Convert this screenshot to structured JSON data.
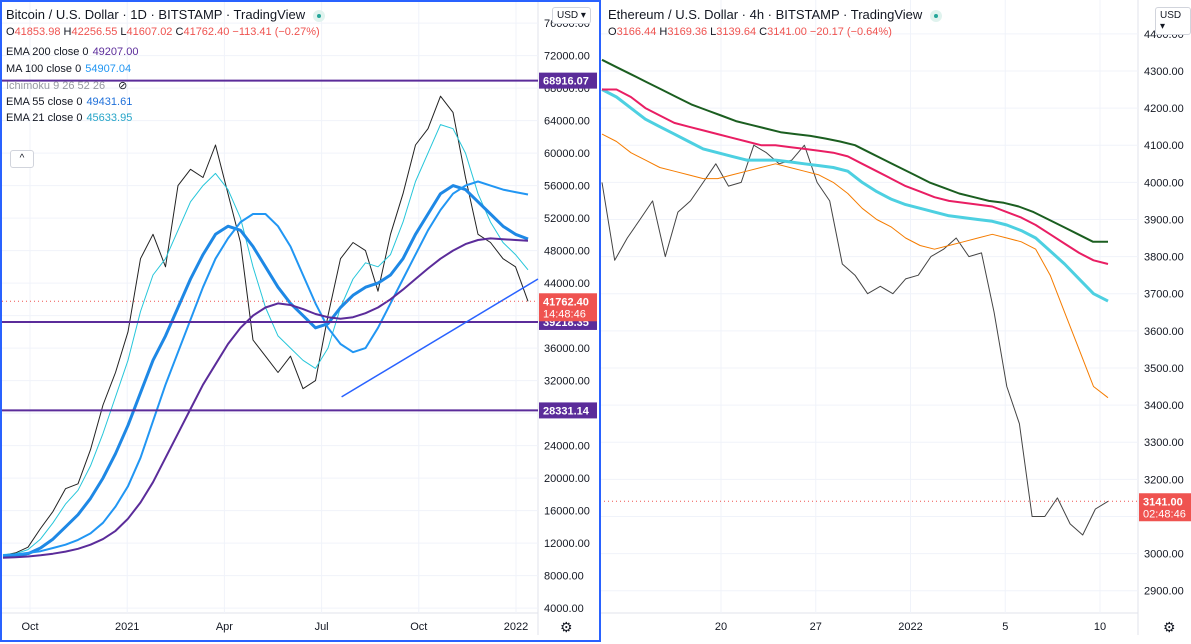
{
  "left": {
    "title": "Bitcoin / U.S. Dollar · 1D · BITSTAMP · TradingView",
    "currency": "USD ▾",
    "ohlc": {
      "o": "41853.98",
      "h": "42256.55",
      "l": "41607.02",
      "c": "41762.40",
      "chg": "−113.41 (−0.27%)"
    },
    "indicators": [
      {
        "label": "EMA 200 close 0",
        "value": "49207.00",
        "color": "#5b2c9a"
      },
      {
        "label": "MA 100 close 0",
        "value": "54907.04",
        "color": "#2196f3"
      },
      {
        "label": "Ichimoku 9 26 52 26",
        "value": "",
        "color": "#131722"
      },
      {
        "label": "EMA 55 close 0",
        "value": "49431.61",
        "color": "#1e6fd9"
      },
      {
        "label": "EMA 21 close 0",
        "value": "45633.95",
        "color": "#26a5c8"
      }
    ],
    "collapse_glyph": "^",
    "settings_glyph": "⚙",
    "chart_data": {
      "type": "line",
      "title": "Bitcoin / U.S. Dollar 1D BITSTAMP",
      "x_ticks": [
        "Oct",
        "2021",
        "Apr",
        "Jul",
        "Oct",
        "2022"
      ],
      "y_ticks": [
        "4000.00",
        "8000.00",
        "12000.00",
        "16000.00",
        "20000.00",
        "24000.00",
        "28000.00",
        "32000.00",
        "36000.00",
        "40000.00",
        "44000.00",
        "48000.00",
        "52000.00",
        "56000.00",
        "60000.00",
        "64000.00",
        "68000.00",
        "72000.00",
        "76000.00"
      ],
      "ylim": [
        3400,
        76500
      ],
      "series": [
        {
          "values": [
            10500,
            10800,
            11500,
            13800,
            15900,
            18700,
            19300,
            23500,
            29000,
            33000,
            38000,
            47000,
            50000,
            46000,
            56000,
            58000,
            57000,
            61000,
            55000,
            49000,
            37000,
            35000,
            33000,
            35000,
            31000,
            32000,
            40000,
            47000,
            49000,
            48000,
            43000,
            50000,
            55000,
            61000,
            63000,
            67000,
            65000,
            57000,
            50000,
            49000,
            47000,
            46000,
            41762
          ]
        },
        {
          "values": [
            10600,
            10700,
            11200,
            12500,
            14500,
            16800,
            18500,
            21500,
            25500,
            30000,
            34500,
            40500,
            45000,
            47000,
            50500,
            54000,
            56000,
            57500,
            55500,
            52000,
            46000,
            41000,
            37500,
            36000,
            34500,
            33500,
            36000,
            41000,
            44500,
            46500,
            46000,
            47500,
            51500,
            56500,
            60000,
            63500,
            63000,
            60000,
            55000,
            51500,
            49000,
            47500,
            45634
          ]
        },
        {
          "values": [
            10300,
            10400,
            10700,
            11400,
            12500,
            14000,
            15500,
            17500,
            20000,
            23000,
            26500,
            30500,
            34500,
            37500,
            41000,
            44500,
            47500,
            50000,
            51000,
            50500,
            48500,
            46000,
            43500,
            41500,
            40000,
            38500,
            39000,
            41000,
            42500,
            43500,
            44000,
            45000,
            47000,
            50000,
            52500,
            55000,
            56000,
            55500,
            54000,
            52500,
            51000,
            50000,
            49432
          ]
        },
        {
          "values": [
            10500,
            10600,
            10800,
            11000,
            11400,
            11800,
            12400,
            13200,
            14500,
            16500,
            19000,
            22500,
            27000,
            31500,
            35500,
            39500,
            43500,
            47000,
            49500,
            51500,
            52500,
            52500,
            51000,
            48500,
            45000,
            41500,
            38500,
            36500,
            35500,
            36000,
            38500,
            41500,
            44500,
            47500,
            50500,
            53000,
            55000,
            56000,
            56500,
            56000,
            55500,
            55200,
            54907
          ]
        },
        {
          "values": [
            10200,
            10250,
            10350,
            10500,
            10700,
            10950,
            11300,
            11800,
            12500,
            13500,
            15000,
            17000,
            19500,
            22500,
            25500,
            28500,
            31500,
            34000,
            36500,
            38500,
            40000,
            41000,
            41500,
            41300,
            40800,
            40200,
            39800,
            39600,
            39800,
            40300,
            41000,
            42000,
            43200,
            44500,
            45800,
            47000,
            48000,
            48800,
            49300,
            49500,
            49400,
            49300,
            49207
          ]
        }
      ],
      "levels": [
        {
          "value": 68916.07,
          "label": "68916.07"
        },
        {
          "value": 39218.35,
          "label": "39218.35"
        },
        {
          "value": 28331.14,
          "label": "28331.14"
        }
      ],
      "trendline": {
        "from": [
          30000,
          "Jul"
        ],
        "to": [
          44500,
          "2022"
        ]
      },
      "last_price": {
        "value": 41762.4,
        "label": "41762.40",
        "countdown": "14:48:46"
      },
      "grid": true
    }
  },
  "right": {
    "title": "Ethereum / U.S. Dollar · 4h · BITSTAMP · TradingView",
    "currency": "USD ▾",
    "ohlc": {
      "o": "3166.44",
      "h": "3169.36",
      "l": "3139.64",
      "c": "3141.00",
      "chg": "−20.17 (−0.64%)"
    },
    "settings_glyph": "⚙",
    "chart_data": {
      "type": "line",
      "title": "Ethereum / U.S. Dollar 4h BITSTAMP",
      "x_ticks": [
        "20",
        "27",
        "2022",
        "5",
        "10"
      ],
      "y_ticks": [
        "2900.00",
        "3000.00",
        "3100.00",
        "3200.00",
        "3300.00",
        "3400.00",
        "3500.00",
        "3600.00",
        "3700.00",
        "3800.00",
        "3900.00",
        "4000.00",
        "4100.00",
        "4200.00",
        "4300.00",
        "4400.00"
      ],
      "ylim": [
        2840,
        4440
      ],
      "series": [
        {
          "values": [
            4000,
            3790,
            3850,
            3900,
            3950,
            3800,
            3920,
            3950,
            4000,
            4050,
            3990,
            4000,
            4100,
            4080,
            4050,
            4060,
            4100,
            4000,
            3950,
            3780,
            3750,
            3700,
            3720,
            3700,
            3740,
            3750,
            3800,
            3820,
            3850,
            3800,
            3810,
            3650,
            3450,
            3350,
            3100,
            3100,
            3150,
            3080,
            3050,
            3120,
            3141
          ]
        },
        {
          "values": [
            4130,
            4110,
            4080,
            4060,
            4040,
            4030,
            4020,
            4010,
            4010,
            4020,
            4030,
            4040,
            4050,
            4040,
            4030,
            4020,
            4000,
            3970,
            3930,
            3900,
            3880,
            3850,
            3830,
            3820,
            3830,
            3840,
            3850,
            3860,
            3850,
            3840,
            3820,
            3750,
            3650,
            3550,
            3450,
            3420
          ]
        },
        {
          "values": [
            4250,
            4230,
            4200,
            4170,
            4150,
            4130,
            4110,
            4090,
            4080,
            4070,
            4060,
            4060,
            4060,
            4055,
            4050,
            4045,
            4040,
            4030,
            4000,
            3975,
            3955,
            3940,
            3930,
            3920,
            3910,
            3905,
            3900,
            3895,
            3885,
            3870,
            3850,
            3815,
            3780,
            3740,
            3700,
            3680
          ]
        },
        {
          "values": [
            4250,
            4250,
            4230,
            4200,
            4180,
            4160,
            4150,
            4140,
            4130,
            4120,
            4110,
            4100,
            4100,
            4095,
            4090,
            4085,
            4080,
            4070,
            4050,
            4030,
            4010,
            3990,
            3975,
            3960,
            3950,
            3945,
            3940,
            3935,
            3920,
            3905,
            3885,
            3860,
            3835,
            3810,
            3790,
            3780
          ]
        },
        {
          "values": [
            4330,
            4310,
            4290,
            4270,
            4250,
            4230,
            4210,
            4195,
            4180,
            4165,
            4155,
            4145,
            4135,
            4130,
            4125,
            4118,
            4110,
            4100,
            4080,
            4060,
            4040,
            4020,
            4000,
            3985,
            3970,
            3960,
            3950,
            3945,
            3935,
            3920,
            3900,
            3880,
            3860,
            3840,
            3840
          ]
        }
      ],
      "last_price": {
        "value": 3141.0,
        "label": "3141.00",
        "countdown": "02:48:46"
      },
      "grid": true
    }
  }
}
